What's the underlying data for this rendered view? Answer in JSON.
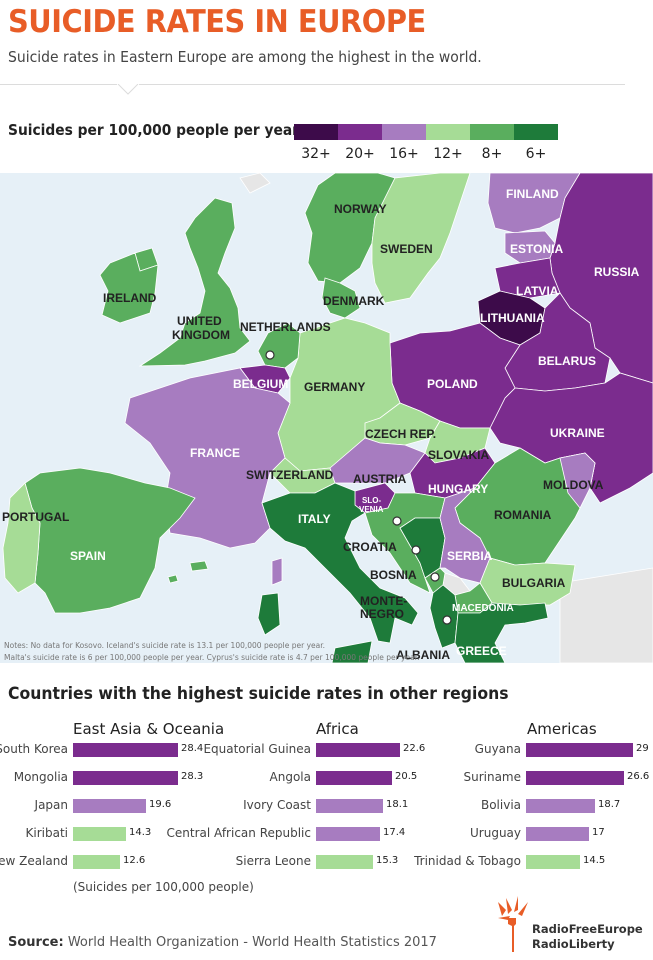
{
  "header": {
    "title": "SUICIDE RATES IN EUROPE",
    "subtitle": "Suicide rates in Eastern Europe are among the highest in the world."
  },
  "legend": {
    "title": "Suicides per 100,000 people per year:",
    "items": [
      {
        "label": "32+",
        "color": "#3d0b4a"
      },
      {
        "label": "20+",
        "color": "#7b2c8e"
      },
      {
        "label": "16+",
        "color": "#a77cc0"
      },
      {
        "label": "12+",
        "color": "#a6dc96"
      },
      {
        "label": "8+",
        "color": "#5aae5e"
      },
      {
        "label": "6+",
        "color": "#1e7b3a"
      }
    ]
  },
  "map": {
    "colors": {
      "sea": "#e6f0f7",
      "none": "#e6e6e6",
      "c32": "#3d0b4a",
      "c20": "#7b2c8e",
      "c16": "#a77cc0",
      "c12": "#a6dc96",
      "c8": "#5aae5e",
      "c6": "#1e7b3a"
    },
    "labels": {
      "norway": "NORWAY",
      "finland": "FINLAND",
      "sweden": "SWEDEN",
      "estonia": "ESTONIA",
      "russia": "RUSSIA",
      "latvia": "LATVIA",
      "lithuania": "LITHUANIA",
      "ireland": "IRELAND",
      "uk1": "UNITED",
      "uk2": "KINGDOM",
      "denmark": "DENMARK",
      "netherlands": "NETHERLANDS",
      "belarus": "BELARUS",
      "belgium": "BELGIUM",
      "germany": "GERMANY",
      "poland": "POLAND",
      "france": "FRANCE",
      "czech": "CZECH REP.",
      "ukraine": "UKRAINE",
      "slovakia": "SLOVAKIA",
      "switzerland": "SWITZERLAND",
      "austria": "AUSTRIA",
      "hungary": "HUNGARY",
      "moldova": "MOLDOVA",
      "portugal": "PORTUGAL",
      "italy": "ITALY",
      "slovenia1": "SLO-",
      "slovenia2": "VENIA",
      "romania": "ROMANIA",
      "croatia": "CROATIA",
      "spain": "SPAIN",
      "serbia": "SERBIA",
      "bosnia": "BOSNIA",
      "bulgaria": "BULGARIA",
      "montenegro1": "MONTE-",
      "montenegro2": "NEGRO",
      "macedonia": "MACEDONIA",
      "albania": "ALBANIA",
      "greece": "GREECE"
    },
    "notes": [
      "Notes: No data for Kosovo. Iceland's suicide rate is 13.1 per 100,000 people per year.",
      "Malta's suicide rate is 6 per 100,000 people per year. Cyprus's suicide rate is 4.7 per 100,000 people per year."
    ]
  },
  "regions_section": {
    "title": "Countries with the highest suicide rates in other regions",
    "footnote": "(Suicides per 100,000 people)",
    "regions": [
      {
        "title": "East Asia & Oceania",
        "rows": [
          {
            "country": "South Korea",
            "value": 28.4,
            "label": "28.4",
            "color": "#7b2c8e"
          },
          {
            "country": "Mongolia",
            "value": 28.3,
            "label": "28.3",
            "color": "#7b2c8e"
          },
          {
            "country": "Japan",
            "value": 19.6,
            "label": "19.6",
            "color": "#a77cc0"
          },
          {
            "country": "Kiribati",
            "value": 14.3,
            "label": "14.3",
            "color": "#a6dc96"
          },
          {
            "country": "New Zealand",
            "value": 12.6,
            "label": "12.6",
            "color": "#a6dc96"
          }
        ]
      },
      {
        "title": "Africa",
        "rows": [
          {
            "country": "Equatorial Guinea",
            "value": 22.6,
            "label": "22.6",
            "color": "#7b2c8e"
          },
          {
            "country": "Angola",
            "value": 20.5,
            "label": "20.5",
            "color": "#7b2c8e"
          },
          {
            "country": "Ivory Coast",
            "value": 18.1,
            "label": "18.1",
            "color": "#a77cc0"
          },
          {
            "country": "Central African Republic",
            "value": 17.4,
            "label": "17.4",
            "color": "#a77cc0"
          },
          {
            "country": "Sierra Leone",
            "value": 15.3,
            "label": "15.3",
            "color": "#a6dc96"
          }
        ]
      },
      {
        "title": "Americas",
        "rows": [
          {
            "country": "Guyana",
            "value": 29,
            "label": "29",
            "color": "#7b2c8e"
          },
          {
            "country": "Suriname",
            "value": 26.6,
            "label": "26.6",
            "color": "#7b2c8e"
          },
          {
            "country": "Bolivia",
            "value": 18.7,
            "label": "18.7",
            "color": "#a77cc0"
          },
          {
            "country": "Uruguay",
            "value": 17,
            "label": "17",
            "color": "#a77cc0"
          },
          {
            "country": "Trinidad & Tobago",
            "value": 14.5,
            "label": "14.5",
            "color": "#a6dc96"
          }
        ]
      }
    ]
  },
  "footer": {
    "source_label": "Source:",
    "source_text": " World Health Organization - World Health Statistics 2017",
    "logo_line1": "RadioFreeEurope",
    "logo_line2": "RadioLiberty",
    "logo_color": "#e85d27"
  }
}
